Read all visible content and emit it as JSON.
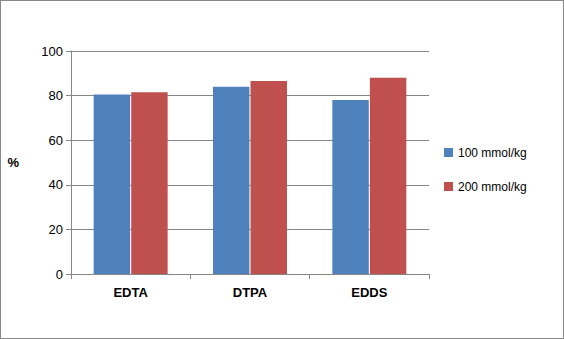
{
  "chart_data": {
    "type": "bar",
    "categories": [
      "EDTA",
      "DTPA",
      "EDDS"
    ],
    "series": [
      {
        "name": "100 mmol/kg",
        "color": "#4f81bd",
        "values": [
          80.5,
          84,
          78
        ]
      },
      {
        "name": "200 mmol/kg",
        "color": "#c0504d",
        "values": [
          81.5,
          86.5,
          88
        ]
      }
    ],
    "ylabel": "%",
    "ylim": [
      0,
      100
    ],
    "yticks": [
      0,
      20,
      40,
      60,
      80,
      100
    ],
    "grid": true,
    "legend": "right"
  }
}
